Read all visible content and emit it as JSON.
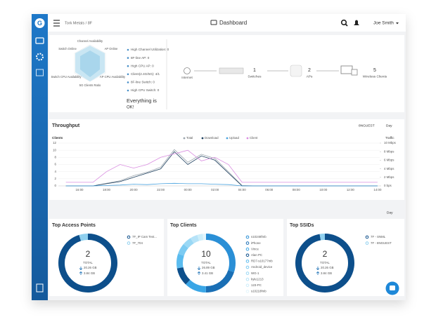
{
  "header": {
    "breadcrumb": "Tork Metals / 8F",
    "title": "Dashboard",
    "user": "Joe Smith"
  },
  "health": {
    "radar_labels": [
      "Channel Availability",
      "Switch Online",
      "AP Online",
      "Switch CPU Availability",
      "AP CPU Availability",
      "5G Clients Ratio"
    ],
    "items": [
      "High Channel Utilization: 0",
      "8F-line AP: 0",
      "High CPU AP: 0",
      "Client(2.4G/5G): 4/1",
      "8F-line Switch: 0",
      "High CPU Switch: 0"
    ],
    "status": "Everything is",
    "status_value": "OK!"
  },
  "topology": {
    "internet": "Internet",
    "nodes": [
      {
        "count": 1,
        "label": "Switches"
      },
      {
        "count": 2,
        "label": "APs"
      },
      {
        "count": 5,
        "label": "Wireless Clients"
      }
    ]
  },
  "throughput": {
    "type": "line",
    "title": "Throughput",
    "ssid": "8NGUEST",
    "period": "Day",
    "y_label": "Clients",
    "y2_label": "Traffic",
    "categories": [
      null,
      "16:00",
      null,
      "18:00",
      null,
      "20:00",
      null,
      "22:00",
      null,
      "00:00",
      null,
      "02:00",
      null,
      "04:00",
      null,
      "06:00",
      null,
      "08:00",
      null,
      "10:00",
      null,
      "12:00",
      null,
      "14:00"
    ],
    "ylim": [
      0,
      12
    ],
    "yticks": [
      0,
      2,
      4,
      6,
      8,
      10,
      12
    ],
    "y2lim": [
      0,
      10
    ],
    "y2ticks": [
      {
        "value": 0,
        "label": "0 bps"
      },
      {
        "value": 2,
        "label": "2 Mbps"
      },
      {
        "value": 4,
        "label": "4 Mbps"
      },
      {
        "value": 6,
        "label": "6 Mbps"
      },
      {
        "value": 8,
        "label": "8 Mbps"
      },
      {
        "value": 10,
        "label": "10 Mbps"
      }
    ],
    "grid": true,
    "series": [
      {
        "name": "Total",
        "color": "#9aa5ad",
        "axis": "y2",
        "values": [
          0,
          0,
          0,
          0.6,
          1.2,
          2.4,
          3.2,
          4.4,
          8.5,
          5.5,
          7.4,
          6.4,
          3.3,
          0.1,
          0,
          0,
          0,
          0,
          0,
          0,
          0,
          0,
          0,
          0
        ]
      },
      {
        "name": "Download",
        "color": "#1d3f5e",
        "axis": "y2",
        "values": [
          0,
          0,
          0,
          0.5,
          1,
          2,
          3,
          4,
          8,
          5,
          7,
          6,
          3,
          0,
          0,
          0,
          0,
          0,
          0,
          0,
          0,
          0,
          0,
          0
        ]
      },
      {
        "name": "Upload",
        "color": "#4aa3df",
        "axis": "y2",
        "values": [
          0,
          0,
          0,
          0.1,
          0.2,
          0.4,
          0.3,
          0.5,
          0.6,
          0.5,
          0.5,
          0.4,
          0.3,
          0,
          0,
          0,
          0,
          0,
          0,
          0,
          0,
          0,
          0,
          0
        ]
      },
      {
        "name": "Client",
        "color": "#d98ce0",
        "values": [
          1,
          1,
          1,
          4,
          6,
          5,
          6,
          8,
          9,
          10,
          7,
          8,
          6,
          1,
          1,
          1,
          1,
          1,
          1,
          1,
          1,
          1,
          1,
          1
        ]
      }
    ]
  },
  "period": "Day",
  "donuts": [
    {
      "title": "Top Access Points",
      "total": 2,
      "total_label": "TOTAL",
      "down": "20.26 GB",
      "up": "3.84 GB",
      "names": [
        "7F_IP Cam Test...",
        "7F_704"
      ],
      "values": [
        95,
        5
      ],
      "colors": [
        "#0d4f8b",
        "#8fd0ef"
      ]
    },
    {
      "title": "Top Clients",
      "total": 10,
      "total_label": "TOTAL",
      "down": "26.89 GB",
      "up": "3.41 GB",
      "names": [
        "s10248fmb",
        "iPhone",
        "Vince",
        "Alan PC",
        "RD7-s10177mb",
        "Android_device",
        "WG-1",
        "kyle1213",
        "123-PC",
        "s10218fmb"
      ],
      "values": [
        30,
        20,
        12,
        10,
        8,
        6,
        5,
        4,
        3,
        2
      ],
      "colors": [
        "#2a8fd6",
        "#1a6fb5",
        "#3aa6e6",
        "#0d4f8b",
        "#5bbcef",
        "#7ccbf2",
        "#9ad8f5",
        "#b6e3f8",
        "#cdeefa",
        "#e3f5fc"
      ]
    },
    {
      "title": "Top SSIDs",
      "total": 2,
      "total_label": "TOTAL",
      "down": "20.26 GB",
      "up": "3.84 GB",
      "names": [
        "7F - SNML",
        "7F - 8NGUEST"
      ],
      "values": [
        97,
        3
      ],
      "colors": [
        "#0d4f8b",
        "#8fd0ef"
      ]
    }
  ]
}
